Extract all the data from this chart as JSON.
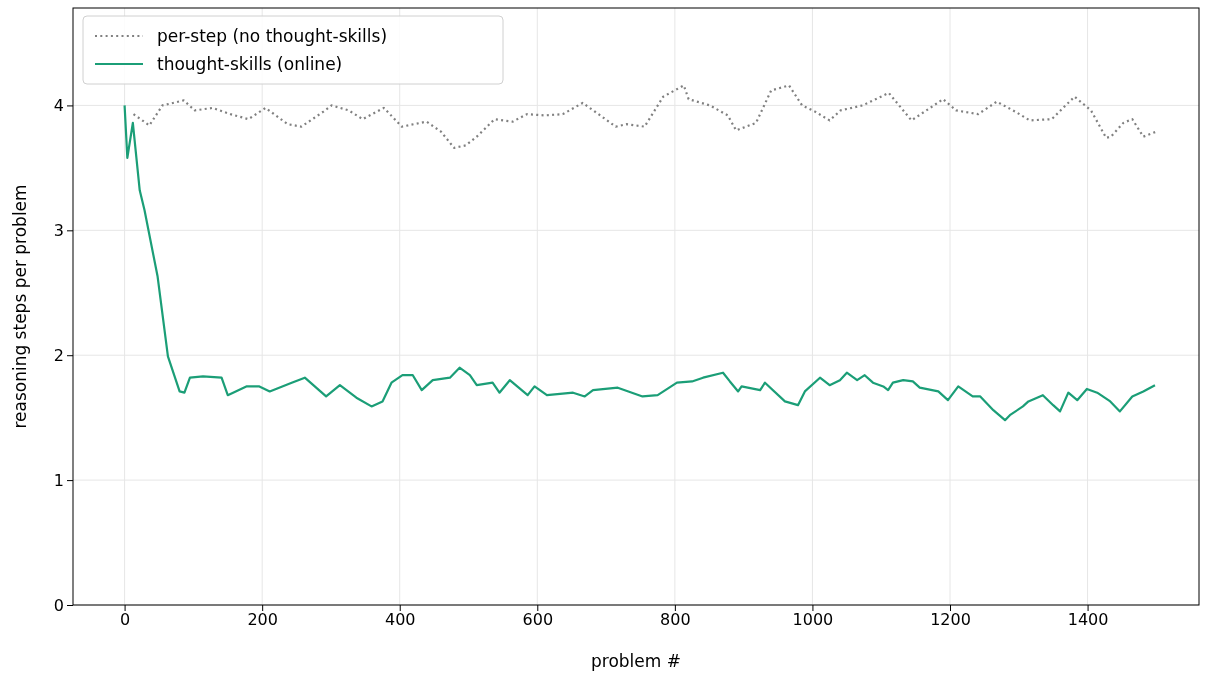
{
  "chart_data": {
    "type": "line",
    "xlabel": "problem #",
    "ylabel": "reasoning steps per problem",
    "xlim": [
      -75,
      1562
    ],
    "ylim": [
      0,
      4.78
    ],
    "xticks": [
      0,
      200,
      400,
      600,
      800,
      1000,
      1200,
      1400
    ],
    "yticks": [
      0,
      1,
      2,
      3,
      4
    ],
    "grid": true,
    "legend": "top left",
    "marker": "none",
    "series": [
      {
        "name": "per-step (no thought-skills)",
        "color": "#808080",
        "line_style": "dotted",
        "x": [
          13,
          36,
          55,
          86,
          102,
          128,
          154,
          180,
          205,
          237,
          257,
          289,
          301,
          326,
          346,
          377,
          403,
          439,
          460,
          479,
          496,
          512,
          538,
          564,
          585,
          611,
          637,
          666,
          689,
          714,
          730,
          756,
          783,
          813,
          820,
          851,
          877,
          889,
          918,
          940,
          966,
          985,
          1004,
          1025,
          1041,
          1073,
          1111,
          1144,
          1190,
          1209,
          1241,
          1268,
          1295,
          1316,
          1348,
          1381,
          1405,
          1427,
          1434,
          1452,
          1465,
          1481,
          1500
        ],
        "values": [
          3.93,
          3.84,
          4.0,
          4.04,
          3.96,
          3.98,
          3.93,
          3.89,
          3.98,
          3.85,
          3.83,
          3.95,
          4.0,
          3.96,
          3.89,
          3.98,
          3.83,
          3.87,
          3.79,
          3.66,
          3.68,
          3.75,
          3.89,
          3.87,
          3.93,
          3.92,
          3.93,
          4.02,
          3.93,
          3.83,
          3.85,
          3.83,
          4.07,
          4.16,
          4.05,
          4.0,
          3.92,
          3.8,
          3.86,
          4.12,
          4.16,
          4.0,
          3.95,
          3.88,
          3.96,
          4.0,
          4.1,
          3.88,
          4.05,
          3.96,
          3.93,
          4.03,
          3.95,
          3.88,
          3.89,
          4.07,
          3.96,
          3.74,
          3.75,
          3.86,
          3.89,
          3.75,
          3.79
        ]
      },
      {
        "name": "thought-skills (online)",
        "color": "#1b9e77",
        "line_style": "solid",
        "x": [
          0,
          4,
          12,
          22,
          29,
          48,
          63,
          80,
          87,
          95,
          114,
          141,
          150,
          177,
          196,
          211,
          243,
          262,
          293,
          313,
          337,
          359,
          375,
          388,
          404,
          419,
          432,
          448,
          473,
          487,
          502,
          512,
          535,
          545,
          560,
          586,
          596,
          614,
          652,
          669,
          681,
          717,
          753,
          775,
          803,
          825,
          841,
          870,
          880,
          892,
          897,
          924,
          931,
          960,
          979,
          989,
          1011,
          1025,
          1040,
          1050,
          1065,
          1076,
          1088,
          1103,
          1110,
          1117,
          1132,
          1146,
          1156,
          1183,
          1197,
          1212,
          1233,
          1244,
          1263,
          1280,
          1287,
          1306,
          1314,
          1335,
          1350,
          1360,
          1372,
          1385,
          1399,
          1414,
          1433,
          1447,
          1465,
          1481,
          1498
        ],
        "values": [
          4.0,
          3.58,
          3.86,
          3.32,
          3.16,
          2.63,
          1.99,
          1.71,
          1.7,
          1.82,
          1.83,
          1.82,
          1.68,
          1.75,
          1.75,
          1.71,
          1.78,
          1.82,
          1.67,
          1.76,
          1.66,
          1.59,
          1.63,
          1.78,
          1.84,
          1.84,
          1.72,
          1.8,
          1.82,
          1.9,
          1.84,
          1.76,
          1.78,
          1.7,
          1.8,
          1.68,
          1.75,
          1.68,
          1.7,
          1.67,
          1.72,
          1.74,
          1.67,
          1.68,
          1.78,
          1.79,
          1.82,
          1.86,
          1.79,
          1.71,
          1.75,
          1.72,
          1.78,
          1.63,
          1.6,
          1.71,
          1.82,
          1.76,
          1.8,
          1.86,
          1.8,
          1.84,
          1.78,
          1.75,
          1.72,
          1.78,
          1.8,
          1.79,
          1.74,
          1.71,
          1.64,
          1.75,
          1.67,
          1.67,
          1.56,
          1.48,
          1.52,
          1.59,
          1.63,
          1.68,
          1.6,
          1.55,
          1.7,
          1.64,
          1.73,
          1.7,
          1.63,
          1.55,
          1.67,
          1.71,
          1.76
        ]
      }
    ]
  }
}
